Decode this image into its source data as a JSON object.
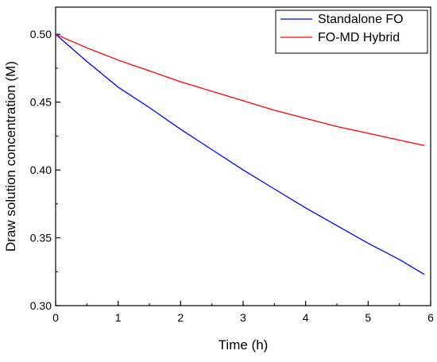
{
  "chart_data": {
    "type": "line",
    "title": "",
    "xlabel": "Time (h)",
    "ylabel": "Draw solution concentration (M)",
    "xlim": [
      0,
      6
    ],
    "ylim": [
      0.3,
      0.52
    ],
    "xticks": [
      "0",
      "1",
      "2",
      "3",
      "4",
      "5",
      "6"
    ],
    "yticks": [
      "0.30",
      "0.35",
      "0.40",
      "0.45",
      "0.50"
    ],
    "grid": false,
    "legend_position": "top-right",
    "series": [
      {
        "name": "Standalone FO",
        "color": "#0000ff",
        "x": [
          0,
          0.5,
          1,
          1.5,
          2,
          2.5,
          3,
          3.5,
          4,
          4.5,
          5,
          5.5,
          5.9
        ],
        "y": [
          0.5,
          0.48,
          0.461,
          0.446,
          0.43,
          0.415,
          0.4,
          0.386,
          0.372,
          0.359,
          0.346,
          0.334,
          0.323
        ]
      },
      {
        "name": "FO-MD Hybrid",
        "color": "#ff0000",
        "x": [
          0,
          0.5,
          1,
          1.5,
          2,
          2.5,
          3,
          3.5,
          4,
          4.5,
          5,
          5.5,
          5.9
        ],
        "y": [
          0.5,
          0.49,
          0.481,
          0.473,
          0.465,
          0.458,
          0.451,
          0.444,
          0.438,
          0.432,
          0.427,
          0.422,
          0.418
        ]
      }
    ]
  }
}
